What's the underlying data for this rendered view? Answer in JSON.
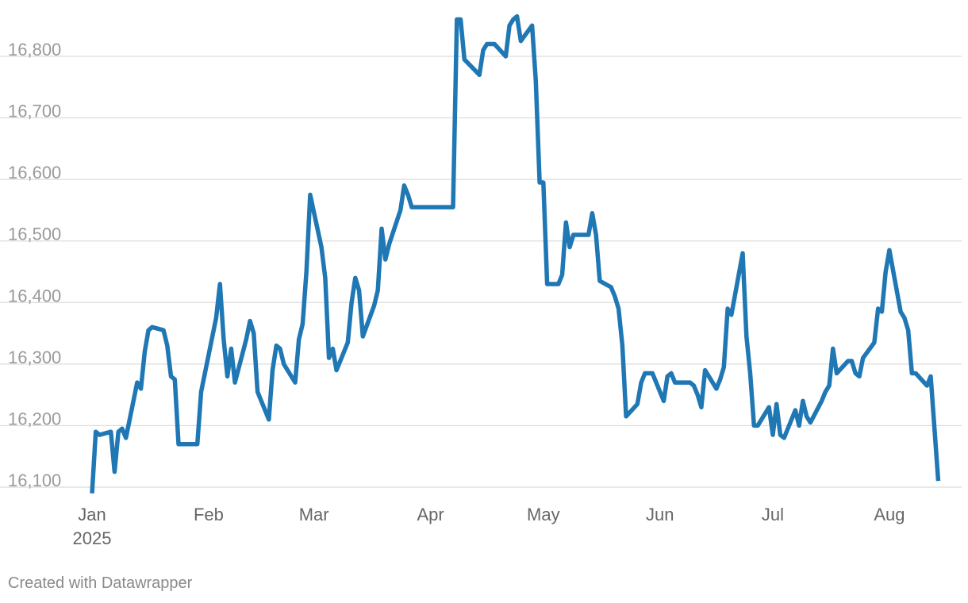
{
  "credit": "Created with Datawrapper",
  "chart_data": {
    "type": "line",
    "title": "",
    "xlabel": "",
    "ylabel": "",
    "ylim": [
      16090,
      16880
    ],
    "xlim": [
      "2025-01-01",
      "2025-08-16"
    ],
    "grid": "horizontal",
    "line_color": "#1f77b4",
    "y_ticks": [
      {
        "value": 16100,
        "label": "16,100"
      },
      {
        "value": 16200,
        "label": "16,200"
      },
      {
        "value": 16300,
        "label": "16,300"
      },
      {
        "value": 16400,
        "label": "16,400"
      },
      {
        "value": 16500,
        "label": "16,500"
      },
      {
        "value": 16600,
        "label": "16,600"
      },
      {
        "value": 16700,
        "label": "16,700"
      },
      {
        "value": 16800,
        "label": "16,800"
      }
    ],
    "x_ticks": [
      {
        "date": "2025-01-01",
        "label": "Jan",
        "sublabel": "2025"
      },
      {
        "date": "2025-02-01",
        "label": "Feb"
      },
      {
        "date": "2025-03-01",
        "label": "Mar"
      },
      {
        "date": "2025-04-01",
        "label": "Apr"
      },
      {
        "date": "2025-05-01",
        "label": "May"
      },
      {
        "date": "2025-06-01",
        "label": "Jun"
      },
      {
        "date": "2025-07-01",
        "label": "Jul"
      },
      {
        "date": "2025-08-01",
        "label": "Aug"
      }
    ],
    "series": [
      {
        "points": [
          [
            "2025-01-01",
            16090
          ],
          [
            "2025-01-02",
            16190
          ],
          [
            "2025-01-03",
            16185
          ],
          [
            "2025-01-06",
            16190
          ],
          [
            "2025-01-07",
            16125
          ],
          [
            "2025-01-08",
            16190
          ],
          [
            "2025-01-09",
            16195
          ],
          [
            "2025-01-10",
            16180
          ],
          [
            "2025-01-13",
            16270
          ],
          [
            "2025-01-14",
            16260
          ],
          [
            "2025-01-15",
            16320
          ],
          [
            "2025-01-16",
            16355
          ],
          [
            "2025-01-17",
            16360
          ],
          [
            "2025-01-20",
            16355
          ],
          [
            "2025-01-21",
            16330
          ],
          [
            "2025-01-22",
            16280
          ],
          [
            "2025-01-23",
            16275
          ],
          [
            "2025-01-24",
            16170
          ],
          [
            "2025-01-27",
            16170
          ],
          [
            "2025-01-28",
            16170
          ],
          [
            "2025-01-29",
            16170
          ],
          [
            "2025-01-30",
            16255
          ],
          [
            "2025-02-03",
            16375
          ],
          [
            "2025-02-04",
            16430
          ],
          [
            "2025-02-05",
            16340
          ],
          [
            "2025-02-06",
            16280
          ],
          [
            "2025-02-07",
            16325
          ],
          [
            "2025-02-08",
            16270
          ],
          [
            "2025-02-11",
            16340
          ],
          [
            "2025-02-12",
            16370
          ],
          [
            "2025-02-13",
            16350
          ],
          [
            "2025-02-14",
            16255
          ],
          [
            "2025-02-17",
            16210
          ],
          [
            "2025-02-18",
            16290
          ],
          [
            "2025-02-19",
            16330
          ],
          [
            "2025-02-20",
            16325
          ],
          [
            "2025-02-21",
            16300
          ],
          [
            "2025-02-24",
            16270
          ],
          [
            "2025-02-25",
            16340
          ],
          [
            "2025-02-26",
            16365
          ],
          [
            "2025-02-27",
            16450
          ],
          [
            "2025-02-28",
            16575
          ],
          [
            "2025-03-03",
            16490
          ],
          [
            "2025-03-04",
            16440
          ],
          [
            "2025-03-05",
            16310
          ],
          [
            "2025-03-06",
            16325
          ],
          [
            "2025-03-07",
            16290
          ],
          [
            "2025-03-10",
            16335
          ],
          [
            "2025-03-11",
            16400
          ],
          [
            "2025-03-12",
            16440
          ],
          [
            "2025-03-13",
            16420
          ],
          [
            "2025-03-14",
            16345
          ],
          [
            "2025-03-17",
            16395
          ],
          [
            "2025-03-18",
            16420
          ],
          [
            "2025-03-19",
            16520
          ],
          [
            "2025-03-20",
            16470
          ],
          [
            "2025-03-21",
            16495
          ],
          [
            "2025-03-24",
            16550
          ],
          [
            "2025-03-25",
            16590
          ],
          [
            "2025-03-26",
            16575
          ],
          [
            "2025-03-27",
            16555
          ],
          [
            "2025-03-28",
            16555
          ],
          [
            "2025-04-07",
            16555
          ],
          [
            "2025-04-08",
            16860
          ],
          [
            "2025-04-09",
            16860
          ],
          [
            "2025-04-10",
            16795
          ],
          [
            "2025-04-14",
            16770
          ],
          [
            "2025-04-15",
            16810
          ],
          [
            "2025-04-16",
            16820
          ],
          [
            "2025-04-17",
            16820
          ],
          [
            "2025-04-18",
            16820
          ],
          [
            "2025-04-21",
            16800
          ],
          [
            "2025-04-22",
            16850
          ],
          [
            "2025-04-23",
            16860
          ],
          [
            "2025-04-24",
            16865
          ],
          [
            "2025-04-25",
            16825
          ],
          [
            "2025-04-28",
            16850
          ],
          [
            "2025-04-29",
            16760
          ],
          [
            "2025-04-30",
            16595
          ],
          [
            "2025-05-01",
            16595
          ],
          [
            "2025-05-02",
            16430
          ],
          [
            "2025-05-05",
            16430
          ],
          [
            "2025-05-06",
            16445
          ],
          [
            "2025-05-07",
            16530
          ],
          [
            "2025-05-08",
            16490
          ],
          [
            "2025-05-09",
            16510
          ],
          [
            "2025-05-12",
            16510
          ],
          [
            "2025-05-13",
            16510
          ],
          [
            "2025-05-14",
            16545
          ],
          [
            "2025-05-15",
            16510
          ],
          [
            "2025-05-16",
            16435
          ],
          [
            "2025-05-19",
            16425
          ],
          [
            "2025-05-20",
            16410
          ],
          [
            "2025-05-21",
            16390
          ],
          [
            "2025-05-22",
            16330
          ],
          [
            "2025-05-23",
            16215
          ],
          [
            "2025-05-26",
            16235
          ],
          [
            "2025-05-27",
            16270
          ],
          [
            "2025-05-28",
            16285
          ],
          [
            "2025-05-29",
            16285
          ],
          [
            "2025-05-30",
            16285
          ],
          [
            "2025-06-02",
            16240
          ],
          [
            "2025-06-03",
            16280
          ],
          [
            "2025-06-04",
            16285
          ],
          [
            "2025-06-05",
            16270
          ],
          [
            "2025-06-06",
            16270
          ],
          [
            "2025-06-09",
            16270
          ],
          [
            "2025-06-10",
            16265
          ],
          [
            "2025-06-11",
            16250
          ],
          [
            "2025-06-12",
            16230
          ],
          [
            "2025-06-13",
            16290
          ],
          [
            "2025-06-16",
            16260
          ],
          [
            "2025-06-17",
            16275
          ],
          [
            "2025-06-18",
            16295
          ],
          [
            "2025-06-19",
            16390
          ],
          [
            "2025-06-20",
            16380
          ],
          [
            "2025-06-23",
            16480
          ],
          [
            "2025-06-24",
            16345
          ],
          [
            "2025-06-25",
            16285
          ],
          [
            "2025-06-26",
            16200
          ],
          [
            "2025-06-27",
            16200
          ],
          [
            "2025-06-30",
            16230
          ],
          [
            "2025-07-01",
            16185
          ],
          [
            "2025-07-02",
            16235
          ],
          [
            "2025-07-03",
            16185
          ],
          [
            "2025-07-04",
            16180
          ],
          [
            "2025-07-07",
            16225
          ],
          [
            "2025-07-08",
            16200
          ],
          [
            "2025-07-09",
            16240
          ],
          [
            "2025-07-10",
            16215
          ],
          [
            "2025-07-11",
            16205
          ],
          [
            "2025-07-14",
            16240
          ],
          [
            "2025-07-15",
            16255
          ],
          [
            "2025-07-16",
            16265
          ],
          [
            "2025-07-17",
            16325
          ],
          [
            "2025-07-18",
            16285
          ],
          [
            "2025-07-21",
            16305
          ],
          [
            "2025-07-22",
            16305
          ],
          [
            "2025-07-23",
            16285
          ],
          [
            "2025-07-24",
            16280
          ],
          [
            "2025-07-25",
            16310
          ],
          [
            "2025-07-28",
            16335
          ],
          [
            "2025-07-29",
            16390
          ],
          [
            "2025-07-30",
            16385
          ],
          [
            "2025-07-31",
            16450
          ],
          [
            "2025-08-01",
            16485
          ],
          [
            "2025-08-04",
            16385
          ],
          [
            "2025-08-05",
            16375
          ],
          [
            "2025-08-06",
            16355
          ],
          [
            "2025-08-07",
            16285
          ],
          [
            "2025-08-08",
            16285
          ],
          [
            "2025-08-11",
            16265
          ],
          [
            "2025-08-12",
            16280
          ],
          [
            "2025-08-14",
            16110
          ]
        ]
      }
    ]
  }
}
